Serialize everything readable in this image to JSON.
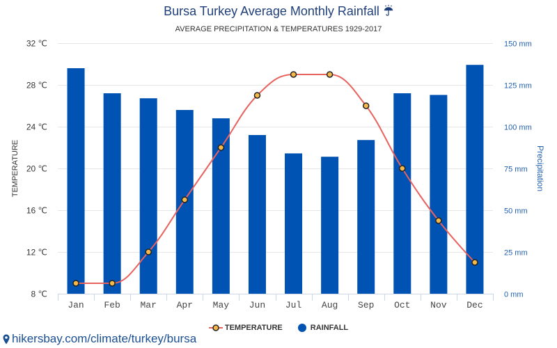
{
  "title_icon": "umbrella-rain-icon",
  "colors": {
    "title": "#1f3f7a",
    "subtitle": "#333333",
    "rainfall_bar": "#0052b3",
    "temperature_line": "#e8625e",
    "temperature_marker_fill": "#f5b94b",
    "temperature_marker_stroke": "#222222",
    "left_axis_text": "#333333",
    "right_axis_text": "#2361ad",
    "x_axis_text": "#444444",
    "gridline": "#e6e6e6",
    "axis_line": "#ccd6eb",
    "footer_link": "#1a4f91"
  },
  "chart_data": {
    "type": "bar",
    "title": "Bursa Turkey Average Monthly Rainfall",
    "subtitle": "AVERAGE PRECIPITATION & TEMPERATURES 1929-2017",
    "categories": [
      "Jan",
      "Feb",
      "Mar",
      "Apr",
      "May",
      "Jun",
      "Jul",
      "Aug",
      "Sep",
      "Oct",
      "Nov",
      "Dec"
    ],
    "series": [
      {
        "name": "TEMPERATURE",
        "type": "line",
        "y_axis": "left",
        "values": [
          9,
          9,
          12,
          17,
          22,
          27,
          29,
          29,
          26,
          20,
          15,
          11
        ]
      },
      {
        "name": "RAINFALL",
        "type": "bar",
        "y_axis": "right",
        "values": [
          135,
          120,
          117,
          110,
          105,
          95,
          84,
          82,
          92,
          120,
          119,
          137
        ]
      }
    ],
    "ylabel": "TEMPERATURE",
    "ylabel_right": "Precipitation",
    "ylim": [
      8,
      32
    ],
    "ylim_right": [
      0,
      150
    ],
    "yticks": [
      {
        "value": 8,
        "label": "8 ℃"
      },
      {
        "value": 12,
        "label": "12 ℃"
      },
      {
        "value": 16,
        "label": "16 ℃"
      },
      {
        "value": 20,
        "label": "20 ℃"
      },
      {
        "value": 24,
        "label": "24 ℃"
      },
      {
        "value": 28,
        "label": "28 ℃"
      },
      {
        "value": 32,
        "label": "32 ℃"
      }
    ],
    "yticks_right": [
      {
        "value": 0,
        "label": "0 mm"
      },
      {
        "value": 25,
        "label": "25 mm"
      },
      {
        "value": 50,
        "label": "50 mm"
      },
      {
        "value": 75,
        "label": "75 mm"
      },
      {
        "value": 100,
        "label": "100 mm"
      },
      {
        "value": 125,
        "label": "125 mm"
      },
      {
        "value": 150,
        "label": "150 mm"
      }
    ],
    "grid": true,
    "legend": "bottom-center"
  },
  "footer": {
    "icon": "location-pin-icon",
    "link_text": "hikersbay.com/climate/turkey/bursa"
  }
}
